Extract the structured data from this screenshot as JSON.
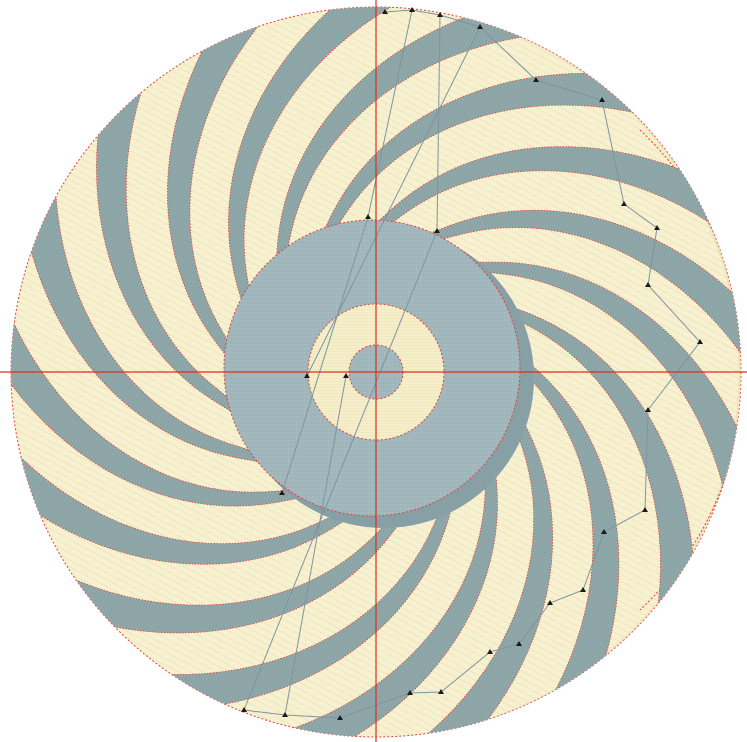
{
  "view": {
    "kind": "impeller / fan blade wireframe viewport",
    "blade_count": 17,
    "colors": {
      "background": "#ffffff",
      "fill_face": "#f8f1cf",
      "fill_face_dark": "#e8dfb6",
      "blade": "#8aa3a5",
      "blade_dark": "#7b9497",
      "hub": "#9eb5bb",
      "hub_shadow": "#86a0a6",
      "inner_ring": "#f5eec9",
      "edge_dotted": "#e0423a",
      "crosshair": "#d8311f",
      "construction_line": "#7c95a0",
      "vertex_marker": "#1a1a1a"
    },
    "icons": [
      "crosshair-icon",
      "vertex-marker-icon"
    ]
  }
}
